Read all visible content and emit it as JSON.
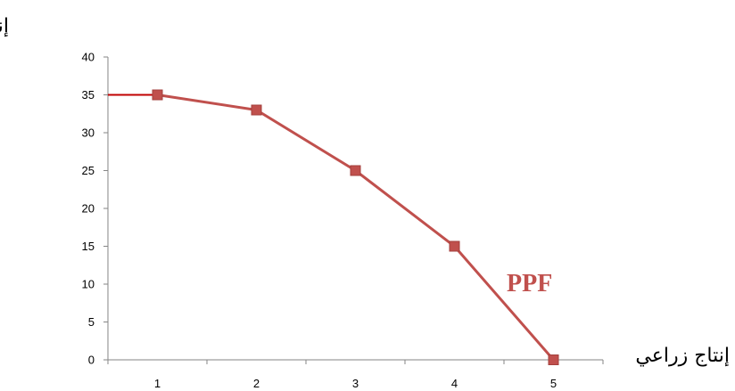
{
  "chart_data": {
    "type": "line",
    "x": [
      1,
      2,
      3,
      4,
      5
    ],
    "series": [
      {
        "values": [
          35,
          33,
          25,
          15,
          0
        ]
      }
    ],
    "xlabel": "إنتاج زراعي",
    "ylabel": "إنتاج صناعي",
    "annotation": "PPF",
    "ylim": [
      0,
      40
    ],
    "yticks": [
      "0",
      "5",
      "10",
      "15",
      "20",
      "25",
      "30",
      "35",
      "40"
    ],
    "xticks": [
      "1",
      "2",
      "3",
      "4",
      "5"
    ],
    "grid": false,
    "legend": "none",
    "colors": {
      "line": "#c0504d",
      "marker": "#c0504d",
      "axis": "#868686",
      "y_intercept_line": "#c00000"
    }
  }
}
